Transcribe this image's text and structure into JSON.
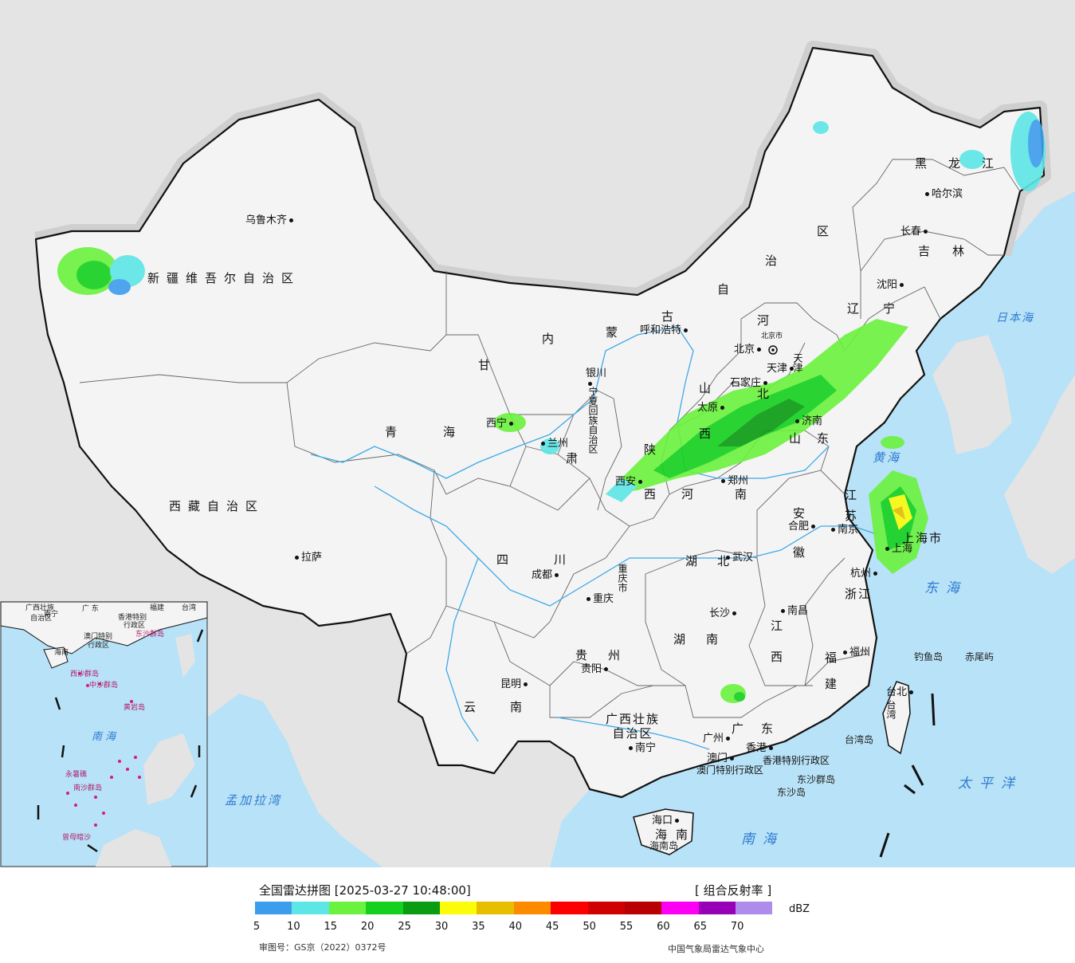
{
  "map": {
    "cities": [
      {
        "id": "urumqi",
        "name": "乌鲁木齐"
      },
      {
        "id": "lhasa",
        "name": "拉萨"
      },
      {
        "id": "xining",
        "name": "西宁"
      },
      {
        "id": "lanzhou",
        "name": "兰州"
      },
      {
        "id": "yinchuan",
        "name": "银川"
      },
      {
        "id": "hohhot",
        "name": "呼和浩特"
      },
      {
        "id": "beijing",
        "name": "北京"
      },
      {
        "id": "tianjin",
        "name": "天津"
      },
      {
        "id": "shijiazhuang",
        "name": "石家庄"
      },
      {
        "id": "taiyuan",
        "name": "太原"
      },
      {
        "id": "jinan",
        "name": "济南"
      },
      {
        "id": "xian",
        "name": "西安"
      },
      {
        "id": "zhengzhou",
        "name": "郑州"
      },
      {
        "id": "chengdu",
        "name": "成都"
      },
      {
        "id": "chongqing",
        "name": "重庆"
      },
      {
        "id": "wuhan",
        "name": "武汉"
      },
      {
        "id": "hefei",
        "name": "合肥"
      },
      {
        "id": "nanjing",
        "name": "南京"
      },
      {
        "id": "shanghai",
        "name": "上海"
      },
      {
        "id": "hangzhou",
        "name": "杭州"
      },
      {
        "id": "changsha",
        "name": "长沙"
      },
      {
        "id": "nanchang",
        "name": "南昌"
      },
      {
        "id": "fuzhou",
        "name": "福州"
      },
      {
        "id": "guiyang",
        "name": "贵阳"
      },
      {
        "id": "kunming",
        "name": "昆明"
      },
      {
        "id": "nanning",
        "name": "南宁"
      },
      {
        "id": "guangzhou",
        "name": "广州"
      },
      {
        "id": "hongkong",
        "name": "香港"
      },
      {
        "id": "macau",
        "name": "澳门"
      },
      {
        "id": "haikou",
        "name": "海口"
      },
      {
        "id": "taibei",
        "name": "台北"
      },
      {
        "id": "shenyang",
        "name": "沈阳"
      },
      {
        "id": "changchun",
        "name": "长春"
      },
      {
        "id": "harbin",
        "name": "哈尔滨"
      }
    ],
    "provinces": [
      {
        "id": "xinjiang",
        "name": "新疆维吾尔自治区"
      },
      {
        "id": "xizang",
        "name": "西藏自治区"
      },
      {
        "id": "qinghai-1",
        "name": "青"
      },
      {
        "id": "qinghai-2",
        "name": "海"
      },
      {
        "id": "sichuan-1",
        "name": "四"
      },
      {
        "id": "sichuan-2",
        "name": "川"
      },
      {
        "id": "yunnan-1",
        "name": "云"
      },
      {
        "id": "yunnan-2",
        "name": "南"
      },
      {
        "id": "guizhou-1",
        "name": "贵"
      },
      {
        "id": "guizhou-2",
        "name": "州"
      },
      {
        "id": "guangxi",
        "name": "广西壮族\n自治区"
      },
      {
        "id": "guangdong-1",
        "name": "广"
      },
      {
        "id": "guangdong-2",
        "name": "东"
      },
      {
        "id": "hainan-1",
        "name": "海"
      },
      {
        "id": "hainan-2",
        "name": "南"
      },
      {
        "id": "hunan-1",
        "name": "湖"
      },
      {
        "id": "hunan-2",
        "name": "南"
      },
      {
        "id": "hubei-1",
        "name": "湖"
      },
      {
        "id": "hubei-2",
        "name": "北"
      },
      {
        "id": "jiangxi-1",
        "name": "江"
      },
      {
        "id": "jiangxi-2",
        "name": "西"
      },
      {
        "id": "fujian-1",
        "name": "福"
      },
      {
        "id": "fujian-2",
        "name": "建"
      },
      {
        "id": "zhejiang",
        "name": "浙江"
      },
      {
        "id": "henan-1",
        "name": "河"
      },
      {
        "id": "henan-2",
        "name": "南"
      },
      {
        "id": "shaanxi-1",
        "name": "陕"
      },
      {
        "id": "shaanxi-2",
        "name": "西"
      },
      {
        "id": "shanxi-1",
        "name": "山"
      },
      {
        "id": "shanxi-2",
        "name": "西"
      },
      {
        "id": "hebei-1",
        "name": "河"
      },
      {
        "id": "hebei-2",
        "name": "北"
      },
      {
        "id": "shandong-1",
        "name": "山"
      },
      {
        "id": "shandong-2",
        "name": "东"
      },
      {
        "id": "gansu-1",
        "name": "甘"
      },
      {
        "id": "gansu-2",
        "name": "肃"
      },
      {
        "id": "neimenggu-1",
        "name": "内"
      },
      {
        "id": "neimenggu-2",
        "name": "蒙"
      },
      {
        "id": "neimenggu-3",
        "name": "古"
      },
      {
        "id": "neimenggu-4",
        "name": "自"
      },
      {
        "id": "neimenggu-5",
        "name": "治"
      },
      {
        "id": "neimenggu-6",
        "name": "区"
      },
      {
        "id": "liaoning-1",
        "name": "辽"
      },
      {
        "id": "liaoning-2",
        "name": "宁"
      },
      {
        "id": "jilin-1",
        "name": "吉"
      },
      {
        "id": "jilin-2",
        "name": "林"
      },
      {
        "id": "heilongjiang-1",
        "name": "黑"
      },
      {
        "id": "heilongjiang-2",
        "name": "龙"
      },
      {
        "id": "heilongjiang-3",
        "name": "江"
      },
      {
        "id": "anhui-1",
        "name": "安"
      },
      {
        "id": "anhui-2",
        "name": "徽"
      },
      {
        "id": "jiangsu-1",
        "name": "江"
      },
      {
        "id": "jiangsu-2",
        "name": "苏"
      },
      {
        "id": "ningxia",
        "name": "宁夏回族自治区"
      },
      {
        "id": "chongqing-prov",
        "name": "重庆市"
      },
      {
        "id": "shanghai-prov",
        "name": "上海市"
      },
      {
        "id": "beijing-prov",
        "name": "北京市"
      },
      {
        "id": "tianjin-prov",
        "name": "天津"
      },
      {
        "id": "taiwan",
        "name": "台湾"
      },
      {
        "id": "hk-sar",
        "name": "香港特别行政区"
      },
      {
        "id": "macau-sar",
        "name": "澳门特别行政区"
      }
    ],
    "seas": [
      {
        "id": "japan-sea",
        "name": "日本海"
      },
      {
        "id": "yellow-sea",
        "name": "黄海"
      },
      {
        "id": "east-sea",
        "name": "东海"
      },
      {
        "id": "pacific",
        "name": "太平洋"
      },
      {
        "id": "south-sea",
        "name": "南海"
      },
      {
        "id": "bengal",
        "name": "孟加拉湾"
      }
    ],
    "islands": [
      {
        "id": "diaoyu",
        "name": "钓鱼岛"
      },
      {
        "id": "chiwei",
        "name": "赤尾屿"
      },
      {
        "id": "taiwan-island",
        "name": "台湾岛"
      },
      {
        "id": "dongsha-islands",
        "name": "东沙群岛"
      },
      {
        "id": "dongsha-island",
        "name": "东沙岛"
      },
      {
        "id": "hainan-island",
        "name": "海南岛"
      }
    ],
    "inset": {
      "labels": [
        {
          "id": "i-guangxi",
          "name": "广西壮族"
        },
        {
          "id": "i-guangxi2",
          "name": "自治区"
        },
        {
          "id": "i-nanning",
          "name": "南宁"
        },
        {
          "id": "i-guangdong",
          "name": "广 东"
        },
        {
          "id": "i-fujian",
          "name": "福建"
        },
        {
          "id": "i-taiwan",
          "name": "台湾"
        },
        {
          "id": "i-hk",
          "name": "香港特别"
        },
        {
          "id": "i-hk2",
          "name": "行政区"
        },
        {
          "id": "i-macau",
          "name": "澳门特别"
        },
        {
          "id": "i-macau2",
          "name": "行政区"
        },
        {
          "id": "i-hainan",
          "name": "海南"
        },
        {
          "id": "i-south-sea",
          "name": "南 海"
        }
      ],
      "pink_labels": [
        {
          "id": "i-dongsha",
          "name": "东沙群岛"
        },
        {
          "id": "i-xisha",
          "name": "西沙群岛"
        },
        {
          "id": "i-zhongsha",
          "name": "中沙群岛"
        },
        {
          "id": "i-huangyan",
          "name": "黄岩岛"
        },
        {
          "id": "i-nansha",
          "name": "南沙群岛"
        },
        {
          "id": "i-yongshu",
          "name": "永暑礁"
        },
        {
          "id": "i-zengmu",
          "name": "曾母暗沙"
        }
      ]
    },
    "colors": {
      "sea": "#b8e2f7",
      "land": "#f4f4f4",
      "outside": "#e4e4e4",
      "river": "#3fa9e8",
      "border": "#111111",
      "halo": "#cfcfcf"
    }
  },
  "legend": {
    "title": "全国雷达拼图 [2025-03-27 10:48:00]",
    "product": "[ 组合反射率 ]",
    "unit": "dBZ",
    "approval": "审图号：GS京（2022）0372号",
    "source": "中国气象局雷达气象中心",
    "ticks": [
      "5",
      "10",
      "15",
      "20",
      "25",
      "30",
      "35",
      "40",
      "45",
      "50",
      "55",
      "60",
      "65",
      "70"
    ],
    "colors": [
      "#3d9ded",
      "#5de6e6",
      "#6af23e",
      "#14d11e",
      "#0a9c13",
      "#fcfc0a",
      "#e8be00",
      "#fc8b00",
      "#fc0000",
      "#d00000",
      "#b80000",
      "#fc00f5",
      "#9800b8",
      "#ae8cec"
    ]
  }
}
